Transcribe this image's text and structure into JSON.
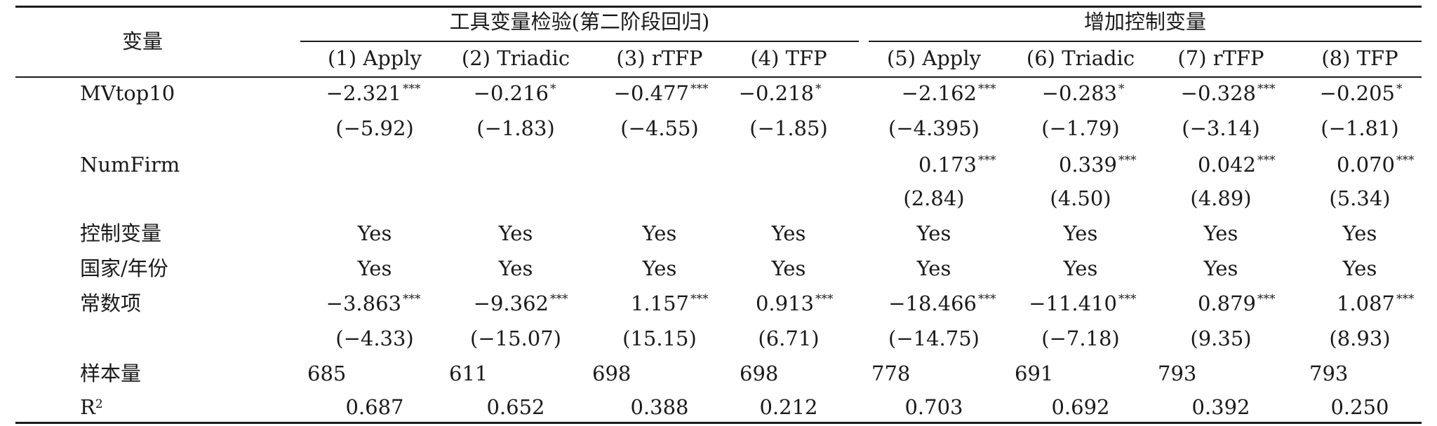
{
  "table": {
    "stub_header": "变量",
    "group_headers": [
      "工具变量检验(第二阶段回归)",
      "增加控制变量"
    ],
    "columns": [
      "(1) Apply",
      "(2) Triadic",
      "(3) rTFP",
      "(4) TFP",
      "(5) Apply",
      "(6) Triadic",
      "(7) rTFP",
      "(8) TFP"
    ],
    "rows": {
      "mvtop10": {
        "label": "MVtop10",
        "coef": [
          "−2.321",
          "−0.216",
          "−0.477",
          "−0.218",
          "−2.162",
          "−0.283",
          "−0.328",
          "−0.205"
        ],
        "stars": [
          "***",
          "*",
          "***",
          "*",
          "***",
          "*",
          "***",
          "*"
        ],
        "t": [
          "(−5.92)",
          "(−1.83)",
          "(−4.55)",
          "(−1.85)",
          "(−4.395)",
          "(−1.79)",
          "(−3.14)",
          "(−1.81)"
        ]
      },
      "numfirm": {
        "label": "NumFirm",
        "coef": [
          "0.173",
          "0.339",
          "0.042",
          "0.070"
        ],
        "stars": [
          "***",
          "***",
          "***",
          "***"
        ],
        "t": [
          "(2.84)",
          "(4.50)",
          "(4.89)",
          "(5.34)"
        ]
      },
      "controls": {
        "label": "控制变量",
        "values": [
          "Yes",
          "Yes",
          "Yes",
          "Yes",
          "Yes",
          "Yes",
          "Yes",
          "Yes"
        ]
      },
      "country_year": {
        "label": "国家/年份",
        "values": [
          "Yes",
          "Yes",
          "Yes",
          "Yes",
          "Yes",
          "Yes",
          "Yes",
          "Yes"
        ]
      },
      "constant": {
        "label": "常数项",
        "coef": [
          "−3.863",
          "−9.362",
          "1.157",
          "0.913",
          "−18.466",
          "−11.410",
          "0.879",
          "1.087"
        ],
        "stars": [
          "***",
          "***",
          "***",
          "***",
          "***",
          "***",
          "***",
          "***"
        ],
        "t": [
          "(−4.33)",
          "(−15.07)",
          "(15.15)",
          "(6.71)",
          "(−14.75)",
          "(−7.18)",
          "(9.35)",
          "(8.93)"
        ]
      },
      "n": {
        "label": "样本量",
        "values": [
          "685",
          "611",
          "698",
          "698",
          "778",
          "691",
          "793",
          "793"
        ]
      },
      "r2": {
        "label": "R",
        "label_sup": "2",
        "values": [
          "0.687",
          "0.652",
          "0.388",
          "0.212",
          "0.703",
          "0.692",
          "0.392",
          "0.250"
        ]
      }
    }
  }
}
